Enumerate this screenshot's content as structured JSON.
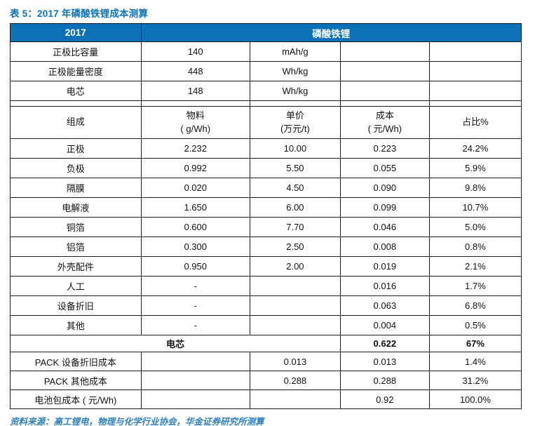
{
  "title": "表 5：2017 年磷酸铁锂成本测算",
  "colors": {
    "header_bg": "#0d72b5",
    "title_blue": "#0d72b5",
    "source_blue": "#2d7fc1",
    "border": "#1a1a1a"
  },
  "table": {
    "header": {
      "year": "2017",
      "product": "磷酸铁锂"
    },
    "spec_rows": [
      {
        "label": "正极比容量",
        "value": "140",
        "unit": "mAh/g"
      },
      {
        "label": "正极能量密度",
        "value": "448",
        "unit": "Wh/kg"
      },
      {
        "label": "电芯",
        "value": "148",
        "unit": "Wh/kg"
      }
    ],
    "columns_header": {
      "component": "组成",
      "material_l1": "物料",
      "material_l2": "( g/Wh)",
      "price_l1": "单价",
      "price_l2": "(万元/t)",
      "cost_l1": "成本",
      "cost_l2": "( 元/Wh)",
      "share": "占比%"
    },
    "component_rows": [
      {
        "label": "正极",
        "material": "2.232",
        "price": "10.00",
        "cost": "0.223",
        "share": "24.2%"
      },
      {
        "label": "负极",
        "material": "0.992",
        "price": "5.50",
        "cost": "0.055",
        "share": "5.9%"
      },
      {
        "label": "隔膜",
        "material": "0.020",
        "price": "4.50",
        "cost": "0.090",
        "share": "9.8%"
      },
      {
        "label": "电解液",
        "material": "1.650",
        "price": "6.00",
        "cost": "0.099",
        "share": "10.7%"
      },
      {
        "label": "铜箔",
        "material": "0.600",
        "price": "7.70",
        "cost": "0.046",
        "share": "5.0%"
      },
      {
        "label": "铝箔",
        "material": "0.300",
        "price": "2.50",
        "cost": "0.008",
        "share": "0.8%"
      },
      {
        "label": "外壳配件",
        "material": "0.950",
        "price": "2.00",
        "cost": "0.019",
        "share": "2.1%"
      },
      {
        "label": "人工",
        "material": "-",
        "price": "",
        "cost": "0.016",
        "share": "1.7%"
      },
      {
        "label": "设备折旧",
        "material": "-",
        "price": "",
        "cost": "0.063",
        "share": "6.8%"
      },
      {
        "label": "其他",
        "material": "-",
        "price": "",
        "cost": "0.004",
        "share": "0.5%"
      }
    ],
    "cell_total_row": {
      "label": "电芯",
      "cost": "0.622",
      "share": "67%"
    },
    "pack_rows": [
      {
        "label": "PACK 设备折旧成本",
        "price": "0.013",
        "cost": "0.013",
        "share": "1.4%"
      },
      {
        "label": "PACK 其他成本",
        "price": "0.288",
        "cost": "0.288",
        "share": "31.2%"
      },
      {
        "label": "电池包成本 ( 元/Wh)",
        "price": "",
        "cost": "0.92",
        "share": "100.0%"
      }
    ]
  },
  "source": "资料来源：高工锂电，物理与化学行业协会，华金证券研究所测算"
}
